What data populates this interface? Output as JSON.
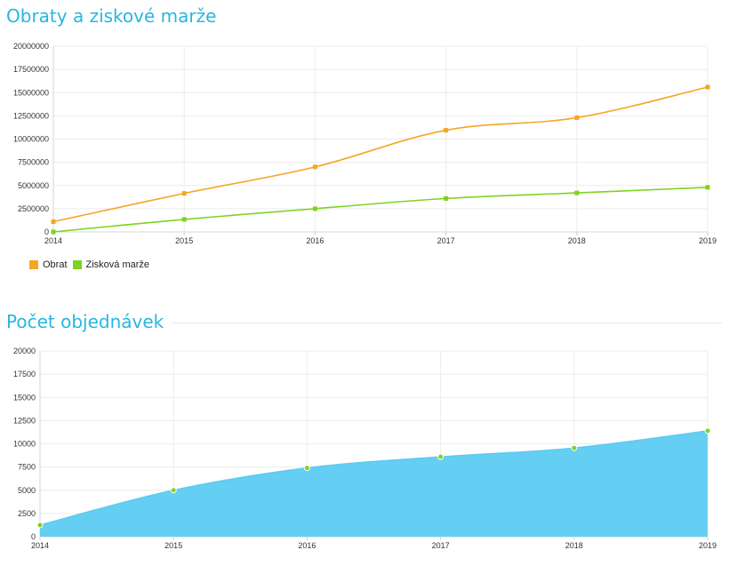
{
  "charts": {
    "revenue": {
      "title": "Obraty a ziskové marže"
    },
    "orders": {
      "title": "Počet objednávek"
    }
  },
  "chart_data": [
    {
      "id": "revenue",
      "type": "line",
      "title": "Obraty a ziskové marže",
      "x": [
        "2014",
        "2015",
        "2016",
        "2017",
        "2018",
        "2019"
      ],
      "y_ticks": [
        "0",
        "2500000",
        "5000000",
        "7500000",
        "10000000",
        "12500000",
        "15000000",
        "17500000",
        "20000000"
      ],
      "ylim": [
        0,
        20000000
      ],
      "grid": true,
      "legend_position": "bottom-left",
      "series": [
        {
          "name": "Obrat",
          "color": "#f5a623",
          "values": [
            1100000,
            4150000,
            7000000,
            10950000,
            12300000,
            15600000
          ]
        },
        {
          "name": "Zisková marže",
          "color": "#7ed321",
          "values": [
            0,
            1350000,
            2500000,
            3600000,
            4200000,
            4800000
          ]
        }
      ]
    },
    {
      "id": "orders",
      "type": "area",
      "title": "Počet objednávek",
      "x": [
        "2014",
        "2015",
        "2016",
        "2017",
        "2018",
        "2019"
      ],
      "y_ticks": [
        "0",
        "2500",
        "5000",
        "7500",
        "10000",
        "12500",
        "15000",
        "17500",
        "20000"
      ],
      "ylim": [
        0,
        20000
      ],
      "grid": true,
      "series": [
        {
          "name": "",
          "color": "#5ccbf2",
          "marker_color": "#7ed321",
          "values": [
            1250,
            5000,
            7400,
            8600,
            9550,
            11400
          ]
        }
      ]
    }
  ]
}
